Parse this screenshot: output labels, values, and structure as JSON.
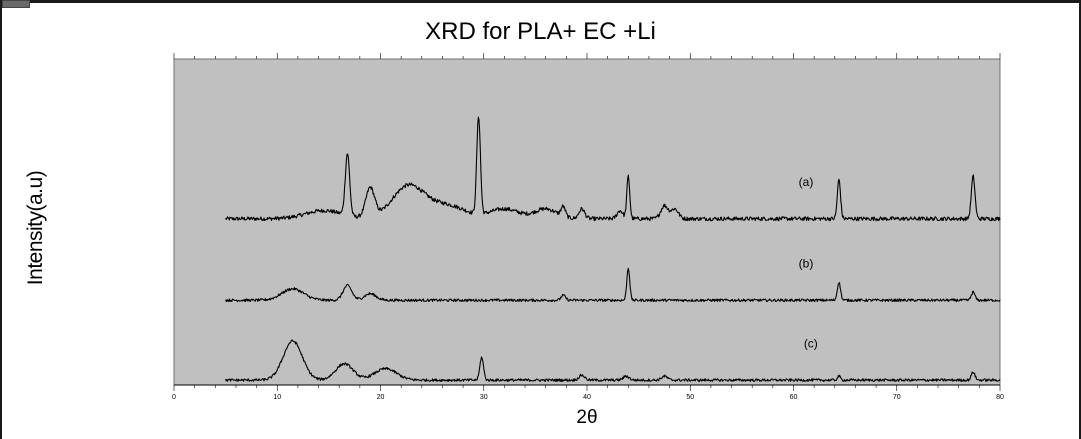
{
  "chart_data": {
    "type": "line",
    "title": "XRD for PLA+ EC +Li",
    "xlabel": "2θ",
    "ylabel": "Intensity(a.u)",
    "xlim": [
      0,
      80
    ],
    "ylim": [
      0,
      100
    ],
    "x_ticks": [
      "0",
      "10",
      "20",
      "30",
      "40",
      "50",
      "60",
      "70",
      "80"
    ],
    "grid": false,
    "background": "#c0c0c0",
    "line_color": "#000000",
    "series": [
      {
        "name": "(a)",
        "label_x": 60.5,
        "baseline": 51,
        "start": 5,
        "end": 80,
        "noise": 0.6,
        "features": [
          {
            "x": 14.5,
            "h": 2.5,
            "w": 2.5
          },
          {
            "x": 16.8,
            "h": 19,
            "w": 0.3
          },
          {
            "x": 19.0,
            "h": 9,
            "w": 0.6
          },
          {
            "x": 22.7,
            "h": 10,
            "w": 2.2
          },
          {
            "x": 26.5,
            "h": 4,
            "w": 2.5
          },
          {
            "x": 29.5,
            "h": 30,
            "w": 0.25
          },
          {
            "x": 32.0,
            "h": 3,
            "w": 2.0
          },
          {
            "x": 36.0,
            "h": 3,
            "w": 1.5
          },
          {
            "x": 37.7,
            "h": 3,
            "w": 0.3
          },
          {
            "x": 39.5,
            "h": 3,
            "w": 0.4
          },
          {
            "x": 43.2,
            "h": 2.5,
            "w": 0.4
          },
          {
            "x": 44.0,
            "h": 13,
            "w": 0.2
          },
          {
            "x": 47.5,
            "h": 4,
            "w": 0.5
          },
          {
            "x": 48.5,
            "h": 3,
            "w": 0.5
          },
          {
            "x": 64.4,
            "h": 12,
            "w": 0.22
          },
          {
            "x": 77.4,
            "h": 13,
            "w": 0.25
          }
        ]
      },
      {
        "name": "(b)",
        "label_x": 60.5,
        "baseline": 26,
        "start": 5,
        "end": 80,
        "noise": 0.4,
        "features": [
          {
            "x": 11.5,
            "h": 3.5,
            "w": 1.5
          },
          {
            "x": 16.8,
            "h": 4.5,
            "w": 0.6
          },
          {
            "x": 19.0,
            "h": 2,
            "w": 0.8
          },
          {
            "x": 37.7,
            "h": 1.5,
            "w": 0.3
          },
          {
            "x": 44.0,
            "h": 10,
            "w": 0.2
          },
          {
            "x": 64.4,
            "h": 5.5,
            "w": 0.22
          },
          {
            "x": 77.4,
            "h": 2.5,
            "w": 0.25
          }
        ]
      },
      {
        "name": "(c)",
        "label_x": 61.0,
        "baseline": 1.5,
        "start": 5,
        "end": 80,
        "noise": 0.4,
        "features": [
          {
            "x": 11.5,
            "h": 12,
            "w": 1.3
          },
          {
            "x": 16.5,
            "h": 5,
            "w": 1.2
          },
          {
            "x": 20.5,
            "h": 3.5,
            "w": 1.5
          },
          {
            "x": 29.8,
            "h": 7,
            "w": 0.25
          },
          {
            "x": 39.5,
            "h": 1.5,
            "w": 0.4
          },
          {
            "x": 43.8,
            "h": 1.2,
            "w": 0.4
          },
          {
            "x": 47.5,
            "h": 1.2,
            "w": 0.4
          },
          {
            "x": 64.4,
            "h": 1.2,
            "w": 0.2
          },
          {
            "x": 77.4,
            "h": 2.5,
            "w": 0.25
          }
        ]
      }
    ]
  }
}
